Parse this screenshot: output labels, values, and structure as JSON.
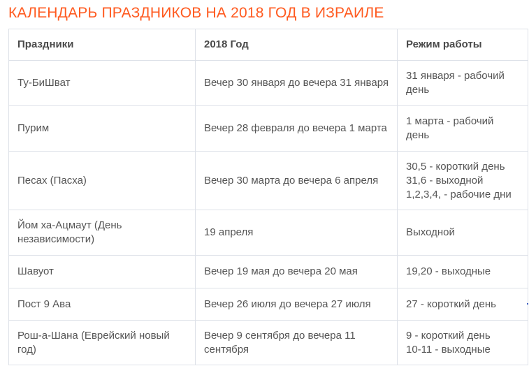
{
  "title": "КАЛЕНДАРЬ ПРАЗДНИКОВ НА 2018 ГОД В ИЗРАИЛЕ",
  "table": {
    "headers": [
      "Праздники",
      "2018 Год",
      "Режим работы"
    ],
    "rows": [
      {
        "holiday": "Ту-БиШват",
        "dates": "Вечер 30 января до вечера 31 января",
        "mode": [
          "31 января - рабочий день"
        ]
      },
      {
        "holiday": "Пурим",
        "dates": "Вечер 28 февраля до вечера 1 марта",
        "mode": [
          "1 марта - рабочий день"
        ]
      },
      {
        "holiday": "Песах (Пасха)",
        "dates": "Вечер 30 марта до вечера 6 апреля",
        "mode": [
          "30,5 - короткий день",
          "31,6 - выходной",
          "1,2,3,4, - рабочие дни"
        ]
      },
      {
        "holiday": "Йом ха-Ацмаут (День независимости)",
        "dates": "19 апреля",
        "mode": [
          "Выходной"
        ]
      },
      {
        "holiday": "Шавуот",
        "dates": "Вечер 19 мая до вечера 20 мая",
        "mode": [
          "19,20 - выходные"
        ]
      },
      {
        "holiday": "Пост 9 Ава",
        "dates": "Вечер 26 июля до вечера 27 июля",
        "mode": [
          "27 - короткий день"
        ]
      },
      {
        "holiday": "Рош-а-Шана (Еврейский новый год)",
        "dates": "Вечер 9 сентября до вечера 11 сентября",
        "mode": [
          "9 - короткий день",
          "10-11 - выходные"
        ]
      }
    ]
  }
}
